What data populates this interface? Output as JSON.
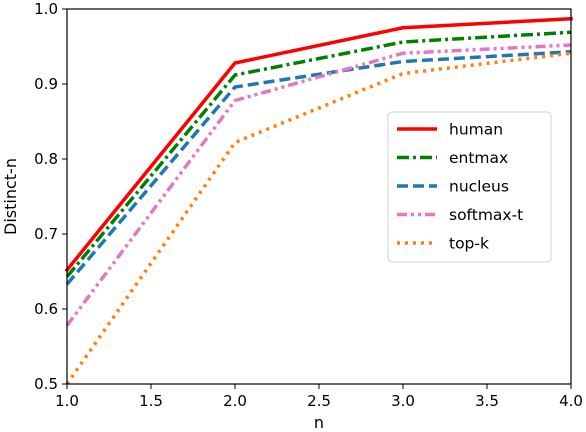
{
  "chart_data": {
    "type": "line",
    "title": "",
    "xlabel": "n",
    "ylabel": "Distinct-n",
    "xlim": [
      1.0,
      4.0
    ],
    "ylim": [
      0.5,
      1.0
    ],
    "grid": false,
    "legend_position": "center-right",
    "x_ticks": [
      "1.0",
      "1.5",
      "2.0",
      "2.5",
      "3.0",
      "3.5",
      "4.0"
    ],
    "y_ticks": [
      "0.5",
      "0.6",
      "0.7",
      "0.8",
      "0.9",
      "1.0"
    ],
    "x": [
      1,
      2,
      3,
      4
    ],
    "series": [
      {
        "name": "human",
        "values": [
          0.652,
          0.928,
          0.975,
          0.987
        ],
        "color": "#ff0000",
        "style": "solid"
      },
      {
        "name": "entmax",
        "values": [
          0.643,
          0.912,
          0.956,
          0.969
        ],
        "color": "#008000",
        "style": "dashdot"
      },
      {
        "name": "nucleus",
        "values": [
          0.633,
          0.896,
          0.93,
          0.943
        ],
        "color": "#1f77b4",
        "style": "dashed"
      },
      {
        "name": "softmax-t",
        "values": [
          0.578,
          0.878,
          0.941,
          0.952
        ],
        "color": "#e377c2",
        "style": "dashdotdot"
      },
      {
        "name": "top-k",
        "values": [
          0.5,
          0.822,
          0.914,
          0.941
        ],
        "color": "#ff7f0e",
        "style": "dotted"
      }
    ]
  }
}
